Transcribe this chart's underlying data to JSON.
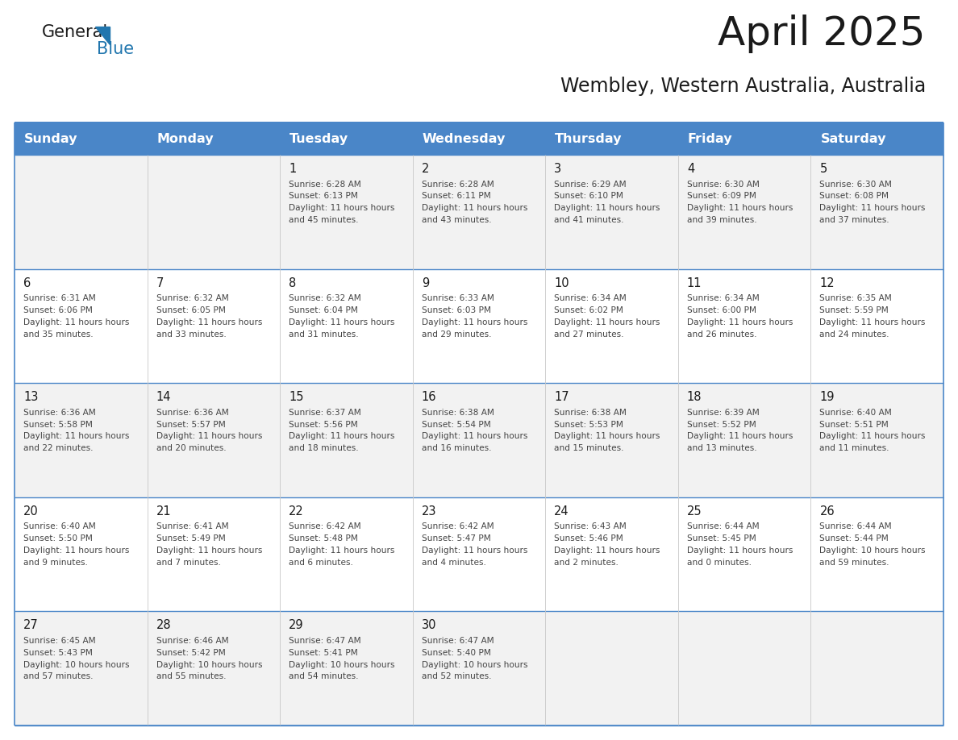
{
  "title": "April 2025",
  "subtitle": "Wembley, Western Australia, Australia",
  "days_of_week": [
    "Sunday",
    "Monday",
    "Tuesday",
    "Wednesday",
    "Thursday",
    "Friday",
    "Saturday"
  ],
  "header_bg": "#4A86C8",
  "header_text": "#FFFFFF",
  "row_bg_odd": "#F2F2F2",
  "row_bg_even": "#FFFFFF",
  "border_color": "#4A86C8",
  "divider_color": "#4A86C8",
  "title_color": "#1a1a1a",
  "subtitle_color": "#1a1a1a",
  "day_number_color": "#1a1a1a",
  "cell_text_color": "#444444",
  "calendar": [
    [
      {
        "day": null,
        "sunrise": null,
        "sunset": null,
        "daylight": null
      },
      {
        "day": null,
        "sunrise": null,
        "sunset": null,
        "daylight": null
      },
      {
        "day": 1,
        "sunrise": "6:28 AM",
        "sunset": "6:13 PM",
        "daylight": "11 hours and 45 minutes."
      },
      {
        "day": 2,
        "sunrise": "6:28 AM",
        "sunset": "6:11 PM",
        "daylight": "11 hours and 43 minutes."
      },
      {
        "day": 3,
        "sunrise": "6:29 AM",
        "sunset": "6:10 PM",
        "daylight": "11 hours and 41 minutes."
      },
      {
        "day": 4,
        "sunrise": "6:30 AM",
        "sunset": "6:09 PM",
        "daylight": "11 hours and 39 minutes."
      },
      {
        "day": 5,
        "sunrise": "6:30 AM",
        "sunset": "6:08 PM",
        "daylight": "11 hours and 37 minutes."
      }
    ],
    [
      {
        "day": 6,
        "sunrise": "6:31 AM",
        "sunset": "6:06 PM",
        "daylight": "11 hours and 35 minutes."
      },
      {
        "day": 7,
        "sunrise": "6:32 AM",
        "sunset": "6:05 PM",
        "daylight": "11 hours and 33 minutes."
      },
      {
        "day": 8,
        "sunrise": "6:32 AM",
        "sunset": "6:04 PM",
        "daylight": "11 hours and 31 minutes."
      },
      {
        "day": 9,
        "sunrise": "6:33 AM",
        "sunset": "6:03 PM",
        "daylight": "11 hours and 29 minutes."
      },
      {
        "day": 10,
        "sunrise": "6:34 AM",
        "sunset": "6:02 PM",
        "daylight": "11 hours and 27 minutes."
      },
      {
        "day": 11,
        "sunrise": "6:34 AM",
        "sunset": "6:00 PM",
        "daylight": "11 hours and 26 minutes."
      },
      {
        "day": 12,
        "sunrise": "6:35 AM",
        "sunset": "5:59 PM",
        "daylight": "11 hours and 24 minutes."
      }
    ],
    [
      {
        "day": 13,
        "sunrise": "6:36 AM",
        "sunset": "5:58 PM",
        "daylight": "11 hours and 22 minutes."
      },
      {
        "day": 14,
        "sunrise": "6:36 AM",
        "sunset": "5:57 PM",
        "daylight": "11 hours and 20 minutes."
      },
      {
        "day": 15,
        "sunrise": "6:37 AM",
        "sunset": "5:56 PM",
        "daylight": "11 hours and 18 minutes."
      },
      {
        "day": 16,
        "sunrise": "6:38 AM",
        "sunset": "5:54 PM",
        "daylight": "11 hours and 16 minutes."
      },
      {
        "day": 17,
        "sunrise": "6:38 AM",
        "sunset": "5:53 PM",
        "daylight": "11 hours and 15 minutes."
      },
      {
        "day": 18,
        "sunrise": "6:39 AM",
        "sunset": "5:52 PM",
        "daylight": "11 hours and 13 minutes."
      },
      {
        "day": 19,
        "sunrise": "6:40 AM",
        "sunset": "5:51 PM",
        "daylight": "11 hours and 11 minutes."
      }
    ],
    [
      {
        "day": 20,
        "sunrise": "6:40 AM",
        "sunset": "5:50 PM",
        "daylight": "11 hours and 9 minutes."
      },
      {
        "day": 21,
        "sunrise": "6:41 AM",
        "sunset": "5:49 PM",
        "daylight": "11 hours and 7 minutes."
      },
      {
        "day": 22,
        "sunrise": "6:42 AM",
        "sunset": "5:48 PM",
        "daylight": "11 hours and 6 minutes."
      },
      {
        "day": 23,
        "sunrise": "6:42 AM",
        "sunset": "5:47 PM",
        "daylight": "11 hours and 4 minutes."
      },
      {
        "day": 24,
        "sunrise": "6:43 AM",
        "sunset": "5:46 PM",
        "daylight": "11 hours and 2 minutes."
      },
      {
        "day": 25,
        "sunrise": "6:44 AM",
        "sunset": "5:45 PM",
        "daylight": "11 hours and 0 minutes."
      },
      {
        "day": 26,
        "sunrise": "6:44 AM",
        "sunset": "5:44 PM",
        "daylight": "10 hours and 59 minutes."
      }
    ],
    [
      {
        "day": 27,
        "sunrise": "6:45 AM",
        "sunset": "5:43 PM",
        "daylight": "10 hours and 57 minutes."
      },
      {
        "day": 28,
        "sunrise": "6:46 AM",
        "sunset": "5:42 PM",
        "daylight": "10 hours and 55 minutes."
      },
      {
        "day": 29,
        "sunrise": "6:47 AM",
        "sunset": "5:41 PM",
        "daylight": "10 hours and 54 minutes."
      },
      {
        "day": 30,
        "sunrise": "6:47 AM",
        "sunset": "5:40 PM",
        "daylight": "10 hours and 52 minutes."
      },
      {
        "day": null,
        "sunrise": null,
        "sunset": null,
        "daylight": null
      },
      {
        "day": null,
        "sunrise": null,
        "sunset": null,
        "daylight": null
      },
      {
        "day": null,
        "sunrise": null,
        "sunset": null,
        "daylight": null
      }
    ]
  ]
}
